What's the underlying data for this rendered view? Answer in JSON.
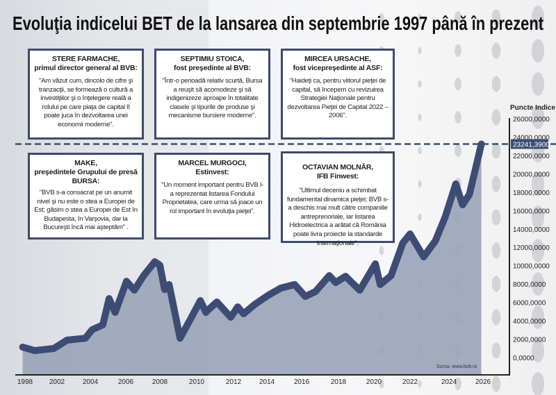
{
  "title": "Evoluţia indicelui BET de la lansarea din septembrie 1997 până în prezent",
  "quotes": [
    {
      "name": "STERE FARMACHE,",
      "role": "primul director general al BVB:",
      "text": "\"Am văzut cum, dincolo de cifre şi tranzacţii, se formează o cultură a investiţiilor şi o înţelegere reală a rolului pe care piaţa de capital îl poate juca în dezvoltarea unei economii moderne\"."
    },
    {
      "name": "SEPTIMIU STOICA,",
      "role": "fost preşedinte al BVB:",
      "text": "\"Într-o perioadă relativ scurtă, Bursa a reuşit să acomodeze şi să indigenizeze aproape în totalitate clasele şi tipurile de produse şi mecanisme bursiere moderne\"."
    },
    {
      "name": "MIRCEA URSACHE,",
      "role": "fost vicepreşedinte al ASF:",
      "text": "\"Haideţi ca, pentru viitorul pieţei de capital, să începem cu revizuirea Strategiei Naţionale pentru dezvoltarea Pieţei de Capital 2022 – 2006\"."
    },
    {
      "name": "MAKE,",
      "role": "preşedintele Grupului de presă BURSA:",
      "text": "\"BVB s-a consacrat pe un anumit nivel şi nu este o stea a Europei de Est; găsim o stea a Europei de Est în Budapesta, în Varşovia, dar la Bucureşti încă mai aşteptăm\" ."
    },
    {
      "name": "MARCEL MURGOCI,",
      "role": "Estinvest:",
      "text": "\"Un moment important pentru BVB l-a reprezentat listarea Fondului Proprietatea, care urma să joace un rol important în evoluţia pieţei\"."
    },
    {
      "name": "OCTAVIAN MOLNĂR,",
      "role": "IFB Finwest:",
      "text": "\"Ultimul deceniu a schimbat fundamental dinamica pieţei; BVB s-a deschis mai mult către companiile antreprenoriale, iar listarea Hidroelectrica a arătat că România poate livra proiecte la standarde internaţionale\"."
    }
  ],
  "chart_data": {
    "type": "area",
    "title": "Evoluţia indicelui BET de la lansarea din septembrie 1997 până în prezent",
    "ylabel": "Puncte Indice",
    "xlabel": "",
    "source": "Sursa: www.bvb.ro",
    "ylim": [
      0,
      26000
    ],
    "yticks": [
      "0,0000",
      "2000,0000",
      "4000,0000",
      "6000,0000",
      "8000,0000",
      "10000,0000",
      "12000,0000",
      "14000,0000",
      "16000,0000",
      "18000,0000",
      "20000,0000",
      "22000,0000",
      "24000,0000",
      "26000,0000"
    ],
    "ytick_values": [
      0,
      2000,
      4000,
      6000,
      8000,
      10000,
      12000,
      14000,
      16000,
      18000,
      20000,
      22000,
      24000,
      26000
    ],
    "xticks": [
      "1998",
      "2002",
      "2004",
      "2006",
      "2008",
      "2010",
      "2012",
      "2014",
      "2016",
      "2018",
      "2020",
      "2022",
      "2024",
      "2026"
    ],
    "grid": false,
    "current_value": 23241.39,
    "current_value_label": "23241,3900",
    "line_color": "#3d4c74",
    "fill_color": "#9aa3b9",
    "series": [
      {
        "x": [
          1997.7,
          1999.2,
          2001.6,
          2002.6,
          2003.7,
          2004.1,
          2004.7,
          2005.06,
          2005.4,
          2006.04,
          2006.5,
          2007.05,
          2007.7,
          2008.0,
          2008.26,
          2008.5,
          2009.1,
          2009.8,
          2010.2,
          2010.5,
          2010.6,
          2011.1,
          2011.85,
          2012.25,
          2012.6,
          2013.3,
          2014.1,
          2014.8,
          2015.6,
          2016.2,
          2016.75,
          2017.5,
          2017.85,
          2018.4,
          2019.2,
          2020.08,
          2020.35,
          2020.95,
          2021.6,
          2022.0,
          2022.7,
          2023.3,
          2023.8,
          2024.4,
          2024.8,
          2025.2,
          2025.9
        ],
        "y": [
          1130,
          750,
          980,
          1890,
          2100,
          3020,
          3550,
          6420,
          4910,
          8300,
          7330,
          8920,
          10430,
          10050,
          7400,
          7940,
          2100,
          4690,
          6200,
          4910,
          5140,
          6050,
          4380,
          5520,
          4760,
          5820,
          6800,
          7560,
          7940,
          6650,
          7180,
          8920,
          8160,
          8840,
          7330,
          10200,
          7940,
          8920,
          12470,
          13450,
          10960,
          12700,
          15270,
          18900,
          16630,
          17760,
          23241
        ]
      }
    ]
  }
}
